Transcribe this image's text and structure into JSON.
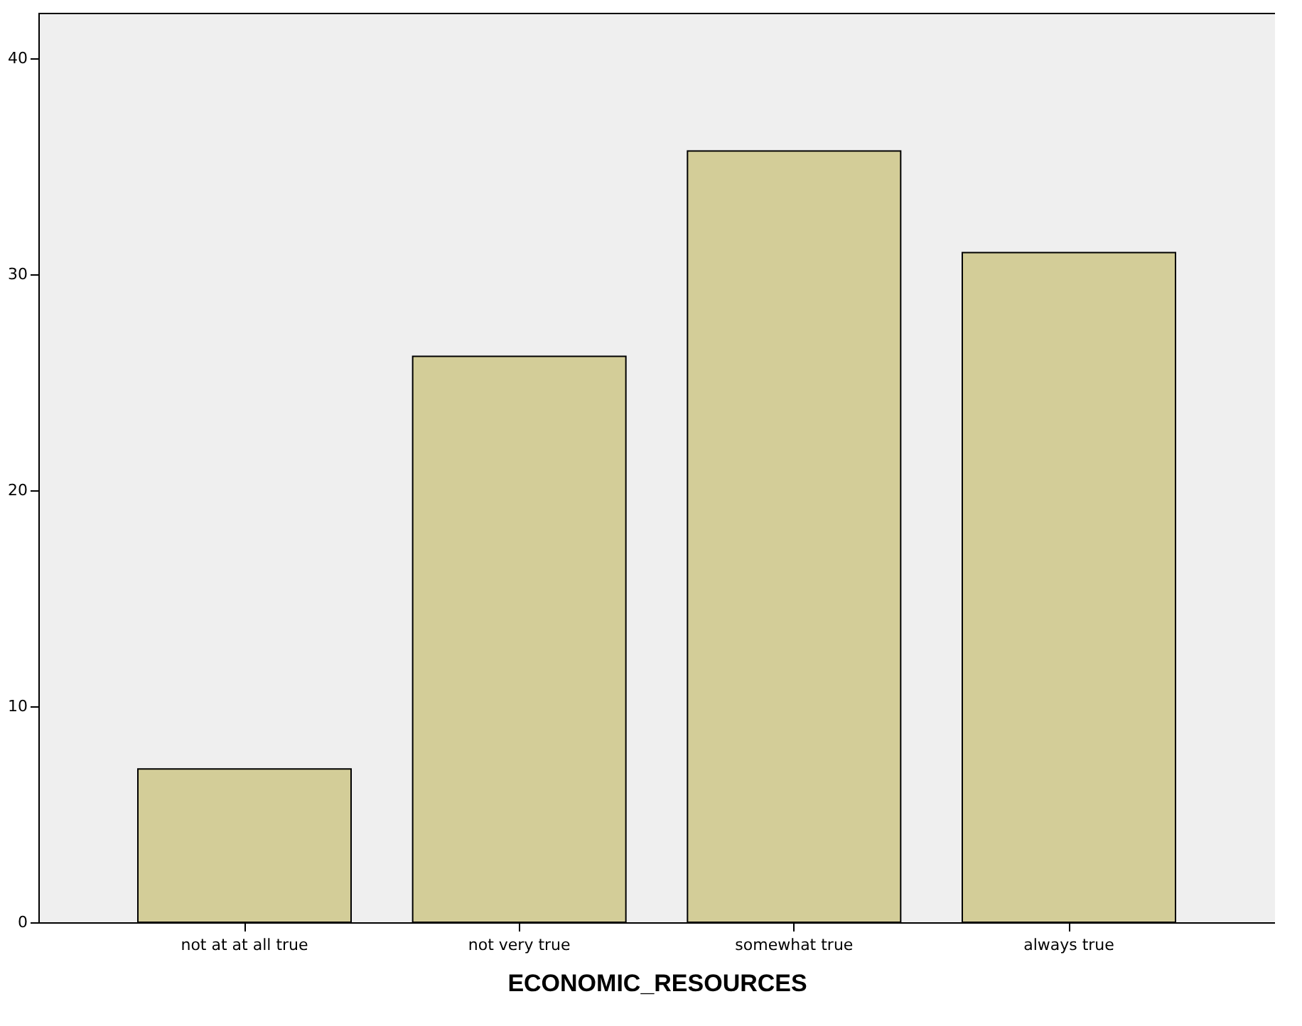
{
  "chart_data": {
    "type": "bar",
    "xlabel": "ECONOMIC_RESOURCES",
    "categories": [
      "not at at all true",
      "not very true",
      "somewhat true",
      "always true"
    ],
    "values": [
      7.1,
      26.2,
      35.7,
      31.0
    ],
    "color": "#d3cd98",
    "ylim": [
      0,
      42.1
    ],
    "yticks": [
      0,
      10,
      20,
      30,
      40
    ],
    "grid": false
  }
}
